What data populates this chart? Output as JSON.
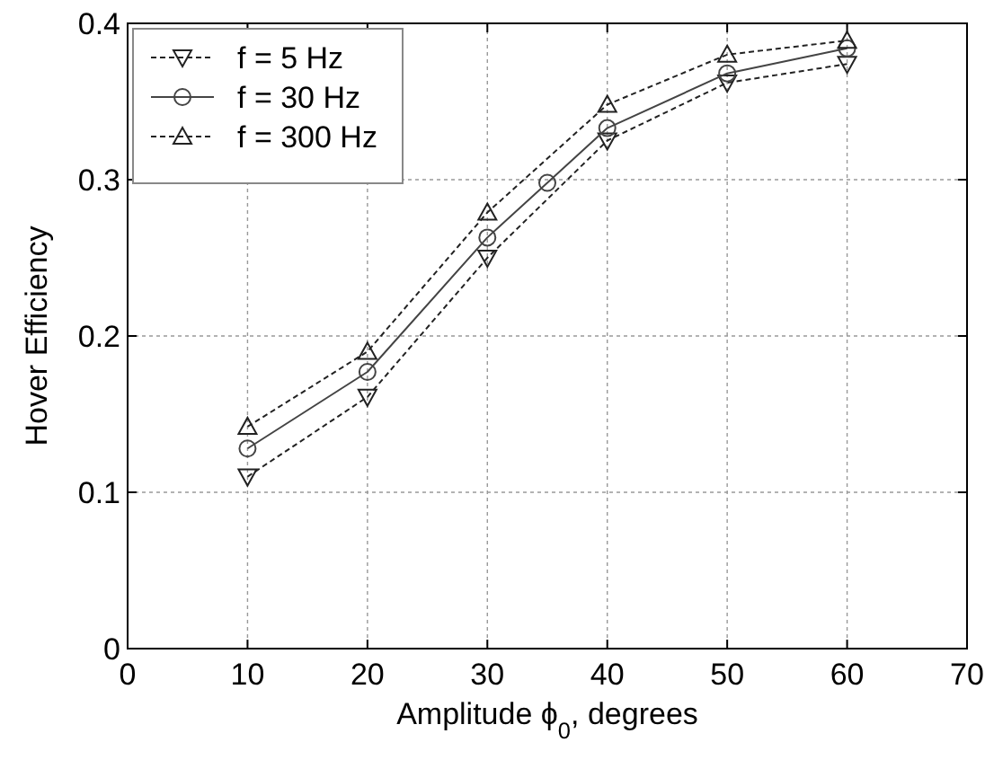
{
  "chart_data": {
    "type": "line",
    "xlabel": "Amplitude ϕ$_{0}$, degrees",
    "ylabel": "Hover Efficiency",
    "xlim": [
      0,
      70
    ],
    "xticks": [
      0,
      10,
      20,
      30,
      40,
      50,
      60,
      70
    ],
    "ylim": [
      0,
      0.4
    ],
    "yticks": [
      0,
      0.1,
      0.2,
      0.3,
      0.4
    ],
    "grid": true,
    "legend": "top left",
    "series": [
      {
        "name": "f = 5 Hz",
        "color": "#222222",
        "line_style": "dashed",
        "marker": "triangle-down",
        "x": [
          10,
          20,
          30,
          40,
          50,
          60
        ],
        "values": [
          0.11,
          0.161,
          0.25,
          0.325,
          0.362,
          0.374
        ]
      },
      {
        "name": "f = 30 Hz",
        "color": "#444444",
        "line_style": "solid",
        "marker": "circle",
        "x": [
          10,
          20,
          30,
          35,
          40,
          50,
          60
        ],
        "values": [
          0.128,
          0.177,
          0.263,
          0.298,
          0.333,
          0.368,
          0.384
        ]
      },
      {
        "name": "f = 300 Hz",
        "color": "#222222",
        "line_style": "dashed",
        "marker": "triangle",
        "x": [
          10,
          20,
          30,
          40,
          50,
          60
        ],
        "values": [
          0.142,
          0.19,
          0.279,
          0.348,
          0.38,
          0.389
        ]
      }
    ]
  }
}
